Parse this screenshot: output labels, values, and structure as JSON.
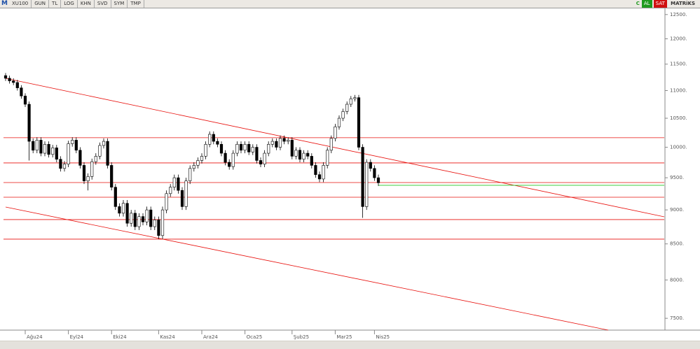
{
  "toolbar": {
    "symbol": "XU100",
    "buttons": [
      "GUN",
      "TL",
      "LOG",
      "KHN",
      "SVD",
      "SYM",
      "TMP"
    ],
    "status": "C",
    "buy": "AL",
    "sell": "SAT",
    "brand": "MATRiKS"
  },
  "chart_data": {
    "type": "candlestick",
    "log_scale": true,
    "up_color": "#ffffff",
    "down_color": "#000000",
    "level_color": "#e8100c",
    "last_color": "#22c422",
    "ylim": [
      7370,
      12630
    ],
    "yticks": [
      {
        "value": 7500,
        "label": "7500."
      },
      {
        "value": 8000,
        "label": "8000."
      },
      {
        "value": 8500,
        "label": "8500."
      },
      {
        "value": 9000,
        "label": "9000."
      },
      {
        "value": 9500,
        "label": "9500."
      },
      {
        "value": 10000,
        "label": "10000."
      },
      {
        "value": 10500,
        "label": "10500."
      },
      {
        "value": 11000,
        "label": "11000."
      },
      {
        "value": 11500,
        "label": "11500."
      },
      {
        "value": 12000,
        "label": "12000."
      },
      {
        "value": 12500,
        "label": "12500."
      }
    ],
    "levels": [
      10162,
      9740,
      9424,
      9194,
      8855,
      8568
    ],
    "last_level": 9380,
    "categories": [
      null,
      null,
      null,
      null,
      null,
      "Ağu24",
      null,
      null,
      null,
      null,
      null,
      null,
      null,
      null,
      null,
      null,
      "Eyl24",
      null,
      null,
      null,
      null,
      null,
      null,
      null,
      null,
      null,
      null,
      "Eki24",
      null,
      null,
      null,
      null,
      null,
      null,
      null,
      null,
      null,
      null,
      null,
      "Kas24",
      null,
      null,
      null,
      null,
      null,
      null,
      null,
      null,
      null,
      null,
      "Ara24",
      null,
      null,
      null,
      null,
      null,
      null,
      null,
      null,
      null,
      null,
      "Oca25",
      null,
      null,
      null,
      null,
      null,
      null,
      null,
      null,
      null,
      null,
      null,
      "Şub25",
      null,
      null,
      null,
      null,
      null,
      null,
      null,
      null,
      null,
      null,
      "Mar25",
      null,
      null,
      null,
      null,
      null,
      null,
      null,
      null,
      null,
      "Nis25",
      null
    ],
    "open": [
      11280,
      11230,
      11180,
      11150,
      11050,
      10900,
      10750,
      10100,
      9950,
      10120,
      9900,
      10050,
      9880,
      9990,
      9800,
      9650,
      9720,
      10060,
      10120,
      9950,
      9700,
      9450,
      9520,
      9760,
      9850,
      10030,
      10100,
      9700,
      9350,
      9050,
      8950,
      9100,
      8800,
      8950,
      8750,
      8900,
      8820,
      9000,
      8750,
      8850,
      8620,
      9000,
      9250,
      9350,
      9500,
      9300,
      9050,
      9450,
      9650,
      9700,
      9780,
      9850,
      10050,
      10220,
      10100,
      10050,
      9900,
      9750,
      9680,
      9900,
      10050,
      9950,
      10050,
      9920,
      10000,
      9780,
      9720,
      9900,
      10050,
      10100,
      10000,
      10150,
      10100,
      10120,
      9850,
      9950,
      9800,
      9900,
      9850,
      9700,
      9550,
      9480,
      9700,
      9950,
      10150,
      10350,
      10500,
      10620,
      10750,
      10850,
      10870,
      10000,
      9050,
      9750,
      9650,
      9500
    ],
    "high": [
      11330,
      11280,
      11230,
      11200,
      11100,
      10950,
      10800,
      10150,
      10170,
      10170,
      10100,
      10100,
      10040,
      10040,
      9850,
      9770,
      10110,
      10170,
      10170,
      10000,
      9750,
      9570,
      9810,
      9900,
      10080,
      10150,
      10150,
      9750,
      9400,
      9100,
      9150,
      9150,
      9000,
      9000,
      8950,
      8950,
      9050,
      9050,
      8900,
      8900,
      9050,
      9300,
      9400,
      9550,
      9550,
      9350,
      9500,
      9700,
      9750,
      9830,
      9900,
      10100,
      10270,
      10270,
      10150,
      10100,
      9950,
      9800,
      9950,
      10100,
      10100,
      10100,
      10100,
      10050,
      10050,
      9830,
      9950,
      10100,
      10150,
      10150,
      10200,
      10200,
      10170,
      10170,
      10000,
      10000,
      9950,
      9950,
      9900,
      9750,
      9600,
      9750,
      10000,
      10200,
      10400,
      10550,
      10670,
      10800,
      10900,
      10920,
      10920,
      10050,
      9800,
      9800,
      9700,
      9550
    ],
    "low": [
      11180,
      11130,
      11100,
      11000,
      10850,
      10700,
      9780,
      9900,
      9900,
      9850,
      9850,
      9830,
      9830,
      9750,
      9600,
      9600,
      9670,
      10010,
      9900,
      9650,
      9400,
      9300,
      9470,
      9710,
      9800,
      9980,
      9650,
      9300,
      9000,
      8900,
      8900,
      8750,
      8750,
      8700,
      8700,
      8770,
      8770,
      8700,
      8700,
      8570,
      8570,
      8950,
      9200,
      9300,
      9250,
      9000,
      9000,
      9400,
      9600,
      9650,
      9730,
      9800,
      10000,
      10050,
      10000,
      9850,
      9700,
      9630,
      9630,
      9850,
      9900,
      9900,
      9870,
      9870,
      9730,
      9670,
      9670,
      9850,
      10000,
      9950,
      9950,
      10050,
      10050,
      9800,
      9800,
      9750,
      9750,
      9800,
      9650,
      9500,
      9430,
      9430,
      9650,
      9900,
      10100,
      10300,
      10450,
      10570,
      10700,
      10800,
      9950,
      8880,
      9000,
      9600,
      9450,
      9370
    ],
    "close": [
      11230,
      11180,
      11150,
      11050,
      10900,
      10750,
      10100,
      9950,
      10120,
      9900,
      10050,
      9880,
      9990,
      9800,
      9650,
      9720,
      10060,
      10120,
      9950,
      9700,
      9450,
      9520,
      9760,
      9850,
      10030,
      10100,
      9700,
      9350,
      9050,
      8950,
      9100,
      8800,
      8950,
      8750,
      8900,
      8820,
      9000,
      8750,
      8850,
      8620,
      9000,
      9250,
      9350,
      9500,
      9300,
      9050,
      9450,
      9650,
      9700,
      9780,
      9850,
      10050,
      10220,
      10100,
      10050,
      9900,
      9750,
      9680,
      9900,
      10050,
      9950,
      10050,
      9920,
      10000,
      9780,
      9720,
      9900,
      10050,
      10100,
      10000,
      10150,
      10100,
      10120,
      9850,
      9950,
      9800,
      9900,
      9850,
      9700,
      9550,
      9480,
      9700,
      9950,
      10150,
      10350,
      10500,
      10620,
      10750,
      10850,
      10870,
      10000,
      9050,
      9750,
      9650,
      9500,
      9420
    ]
  }
}
